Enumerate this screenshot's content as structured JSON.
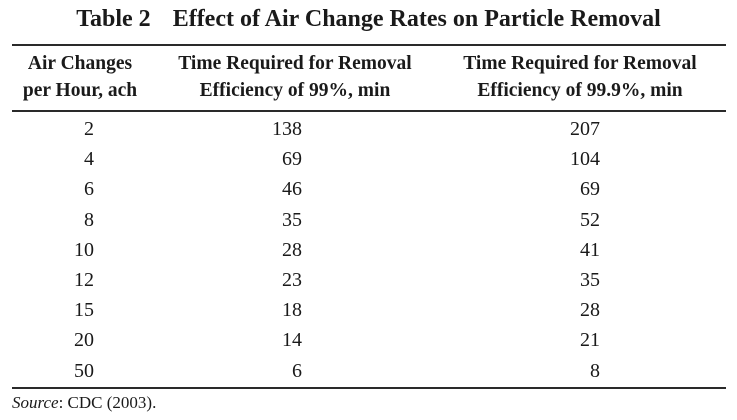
{
  "table": {
    "number": "Table 2",
    "title": "Effect of Air Change Rates on Particle Removal",
    "headers": [
      {
        "line1": "Air Changes",
        "line2": "per Hour, ach"
      },
      {
        "line1": "Time Required for Removal",
        "line2": "Efficiency of 99%, min"
      },
      {
        "line1": "Time Required for Removal",
        "line2": "Efficiency of 99.9%, min"
      }
    ],
    "rows": [
      [
        "2",
        "138",
        "207"
      ],
      [
        "4",
        "69",
        "104"
      ],
      [
        "6",
        "46",
        "69"
      ],
      [
        "8",
        "35",
        "52"
      ],
      [
        "10",
        "28",
        "41"
      ],
      [
        "12",
        "23",
        "35"
      ],
      [
        "15",
        "18",
        "28"
      ],
      [
        "20",
        "14",
        "21"
      ],
      [
        "50",
        "6",
        "8"
      ]
    ],
    "source_label": "Source",
    "source_text": ": CDC (2003)."
  }
}
